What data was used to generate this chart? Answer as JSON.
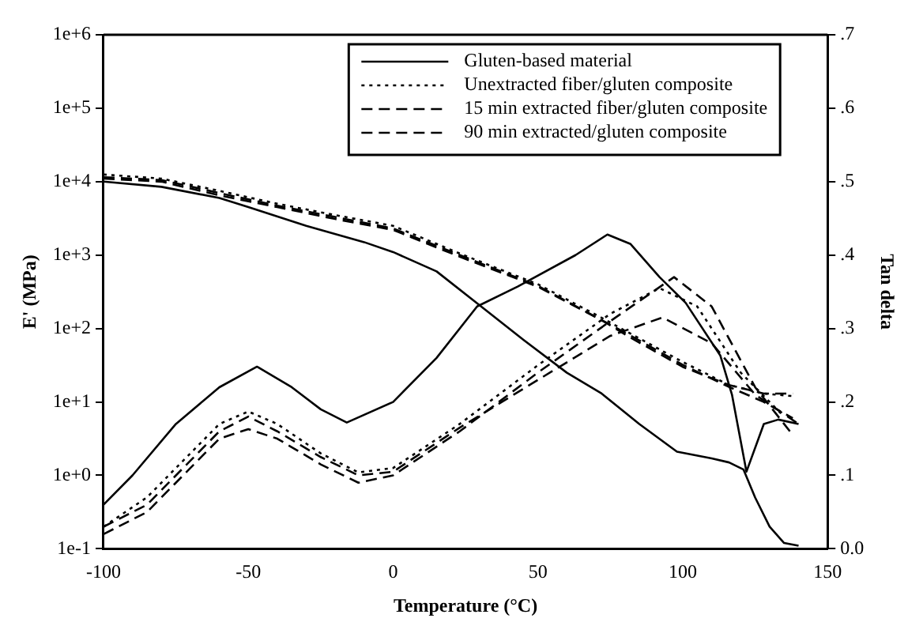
{
  "chart_data": {
    "type": "line",
    "xlabel": "Temperature (°C)",
    "ylabel": "E' (MPa)",
    "y2label": "Tan delta",
    "log": "y",
    "grid": false,
    "legend": "top right",
    "marker": "none",
    "xlim": [
      -100,
      150
    ],
    "xticks": [
      -100,
      -50,
      0,
      50,
      100,
      150
    ],
    "ylim": [
      0.1,
      1000000
    ],
    "yticks": [
      {
        "value": 0.1,
        "label": "1e-1"
      },
      {
        "value": 1,
        "label": "1e+0"
      },
      {
        "value": 10,
        "label": "1e+1"
      },
      {
        "value": 100,
        "label": "1e+2"
      },
      {
        "value": 1000,
        "label": "1e+3"
      },
      {
        "value": 10000,
        "label": "1e+4"
      },
      {
        "value": 100000,
        "label": "1e+5"
      },
      {
        "value": 1000000,
        "label": "1e+6"
      }
    ],
    "y2lim": [
      0,
      0.7
    ],
    "y2ticks": [
      {
        "value": 0,
        "label": "0.0"
      },
      {
        "value": 0.1,
        "label": ".1"
      },
      {
        "value": 0.2,
        "label": ".2"
      },
      {
        "value": 0.3,
        "label": ".3"
      },
      {
        "value": 0.4,
        "label": ".4"
      },
      {
        "value": 0.5,
        "label": ".5"
      },
      {
        "value": 0.6,
        "label": ".6"
      },
      {
        "value": 0.7,
        "label": ".7"
      }
    ],
    "series": [
      {
        "name": "Gluten-based material",
        "color": "#000000",
        "line_style": "solid",
        "x": [
          -100,
          -80,
          -60,
          -50,
          -30,
          -10,
          0,
          15,
          29,
          45,
          60,
          72,
          85,
          98,
          110,
          116,
          121,
          125,
          130,
          135,
          140
        ],
        "values": [
          10000,
          8500,
          6000,
          4500,
          2500,
          1500,
          1100,
          600,
          220,
          70,
          25,
          13,
          5,
          2.1,
          1.7,
          1.5,
          1.2,
          0.5,
          0.2,
          0.12,
          0.11
        ]
      },
      {
        "name": "Unextracted fiber/gluten composite",
        "color": "#000000",
        "line_style": "dotted",
        "x": [
          -100,
          -80,
          -60,
          -40,
          -20,
          0,
          23,
          50,
          72,
          82,
          100,
          116,
          128,
          138
        ],
        "values": [
          12500,
          11000,
          7500,
          5000,
          3500,
          2500,
          1050,
          400,
          140,
          85,
          35,
          17,
          13,
          12
        ]
      },
      {
        "name": "15 min extracted fiber/gluten composite",
        "color": "#000000",
        "line_style": "dashed",
        "x": [
          -100,
          -80,
          -60,
          -40,
          -20,
          0,
          23,
          50,
          72,
          82,
          100,
          116,
          128,
          138
        ],
        "values": [
          11500,
          10500,
          7000,
          4700,
          3300,
          2300,
          1000,
          380,
          130,
          80,
          32,
          16,
          10,
          6
        ]
      },
      {
        "name": "90 min extracted/gluten composite",
        "color": "#000000",
        "line_style": "dashed",
        "x": [
          -100,
          -80,
          -60,
          -40,
          -20,
          0,
          23,
          50,
          72,
          82,
          100,
          116,
          128,
          138
        ],
        "values": [
          11000,
          10000,
          6500,
          4500,
          3100,
          2200,
          950,
          370,
          130,
          75,
          30,
          17,
          13,
          13
        ]
      },
      {
        "color": "#000000",
        "line_style": "solid",
        "axis": "y2",
        "x": [
          -100,
          -90,
          -75,
          -60,
          -47,
          -35,
          -25,
          -16,
          0,
          15,
          29,
          43,
          63,
          74,
          82,
          92,
          101,
          113,
          117,
          122,
          128,
          133,
          140
        ],
        "values": [
          0.06,
          0.1,
          0.17,
          0.22,
          0.248,
          0.22,
          0.19,
          0.172,
          0.2,
          0.26,
          0.33,
          0.357,
          0.4,
          0.428,
          0.415,
          0.37,
          0.335,
          0.263,
          0.21,
          0.105,
          0.17,
          0.176,
          0.17
        ]
      },
      {
        "color": "#000000",
        "line_style": "dotted",
        "axis": "y2",
        "x": [
          -100,
          -85,
          -70,
          -60,
          -50,
          -40,
          -25,
          -12,
          0,
          23,
          50,
          75,
          92,
          105,
          120,
          135
        ],
        "values": [
          0.03,
          0.07,
          0.13,
          0.17,
          0.187,
          0.17,
          0.13,
          0.104,
          0.11,
          0.17,
          0.25,
          0.32,
          0.355,
          0.33,
          0.24,
          0.18
        ]
      },
      {
        "color": "#000000",
        "line_style": "dashed",
        "axis": "y2",
        "x": [
          -100,
          -85,
          -70,
          -60,
          -50,
          -40,
          -25,
          -12,
          0,
          23,
          50,
          75,
          97,
          110,
          125,
          137
        ],
        "values": [
          0.02,
          0.05,
          0.11,
          0.15,
          0.163,
          0.15,
          0.115,
          0.09,
          0.1,
          0.16,
          0.24,
          0.31,
          0.37,
          0.33,
          0.22,
          0.16
        ]
      },
      {
        "color": "#000000",
        "line_style": "dashed",
        "axis": "y2",
        "x": [
          -100,
          -85,
          -70,
          -60,
          -50,
          -40,
          -25,
          -12,
          0,
          23,
          50,
          75,
          93,
          110,
          125,
          140
        ],
        "values": [
          0.03,
          0.06,
          0.12,
          0.16,
          0.18,
          0.16,
          0.125,
          0.1,
          0.105,
          0.165,
          0.23,
          0.29,
          0.315,
          0.28,
          0.21,
          0.17
        ]
      }
    ]
  }
}
